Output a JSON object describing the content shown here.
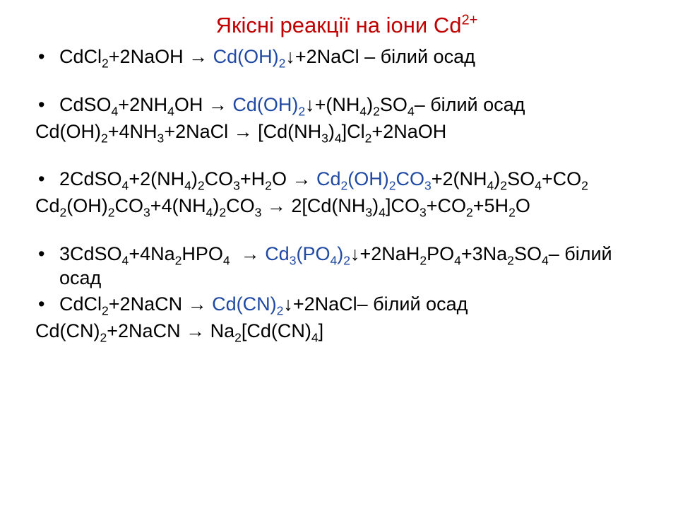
{
  "colors": {
    "title": "#c00000",
    "text": "#000000",
    "product": "#1f49a3",
    "bg": "#ffffff"
  },
  "title": {
    "pre": "Якісні реакції на іони Cd",
    "sup": "2+"
  },
  "lines": [
    {
      "bullet": true,
      "segments": [
        {
          "html": "CdCl<sub>2</sub>+2NaOH → ",
          "c": "text"
        },
        {
          "html": "Cd(OH)<sub>2</sub>",
          "c": "product"
        },
        {
          "html": "↓+2NaCl – білий осад",
          "c": "text"
        }
      ]
    },
    {
      "spacer": "gap"
    },
    {
      "bullet": true,
      "segments": [
        {
          "html": "CdSO<sub>4</sub>+2NH<sub>4</sub>OH → ",
          "c": "text"
        },
        {
          "html": "Cd(OH)<sub>2</sub>",
          "c": "product"
        },
        {
          "html": "↓+(NH<sub>4</sub>)<sub>2</sub>SO<sub>4</sub>– білий осад",
          "c": "text"
        }
      ]
    },
    {
      "spacer": "smallgap"
    },
    {
      "bullet": false,
      "segments": [
        {
          "html": "Cd(OH)<sub>2</sub>+4NH<sub>3</sub>+2NaCl → [Cd(NH<sub>3</sub>)<sub>4</sub>]Cl<sub>2</sub>+2NaOH",
          "c": "text"
        }
      ]
    },
    {
      "spacer": "gap"
    },
    {
      "bullet": true,
      "segments": [
        {
          "html": "2CdSO<sub>4</sub>+2(NH<sub>4</sub>)<sub>2</sub>CO<sub>3</sub>+H<sub>2</sub>O → ",
          "c": "text"
        },
        {
          "html": "Cd<sub>2</sub>(OH)<sub>2</sub>CO<sub>3</sub>",
          "c": "product"
        },
        {
          "html": "+2(NH<sub>4</sub>)<sub>2</sub>SO<sub>4</sub>+CO<sub>2</sub>",
          "c": "text"
        }
      ]
    },
    {
      "spacer": "smallgap"
    },
    {
      "bullet": false,
      "segments": [
        {
          "html": "Cd<sub>2</sub>(OH)<sub>2</sub>CO<sub>3</sub>+4(NH<sub>4</sub>)<sub>2</sub>CO<sub>3</sub> → 2[Cd(NH<sub>3</sub>)<sub>4</sub>]CO<sub>3</sub>+CO<sub>2</sub>+5H<sub>2</sub>O",
          "c": "text"
        }
      ]
    },
    {
      "spacer": "gap"
    },
    {
      "bullet": true,
      "segments": [
        {
          "html": "3CdSO<sub>4</sub>+4Na<sub>2</sub>HPO<sub>4</sub>&nbsp;&nbsp;→ ",
          "c": "text"
        },
        {
          "html": "Cd<sub>3</sub>(PO<sub>4</sub>)<sub>2</sub>",
          "c": "product"
        },
        {
          "html": "↓+2NaH<sub>2</sub>PO<sub>4</sub>+3Na<sub>2</sub>SO<sub>4</sub>– білий осад",
          "c": "text"
        }
      ]
    },
    {
      "spacer": "smallgap"
    },
    {
      "bullet": true,
      "segments": [
        {
          "html": "CdCl<sub>2</sub>+2NaCN → ",
          "c": "text"
        },
        {
          "html": "Cd(CN)<sub>2</sub>",
          "c": "product"
        },
        {
          "html": "↓+2NaCl– білий осад",
          "c": "text"
        }
      ]
    },
    {
      "spacer": "smallgap"
    },
    {
      "bullet": false,
      "segments": [
        {
          "html": "Cd(CN)<sub>2</sub>+2NaCN → Na<sub>2</sub>[Cd(CN)<sub>4</sub>]",
          "c": "text"
        }
      ]
    }
  ]
}
